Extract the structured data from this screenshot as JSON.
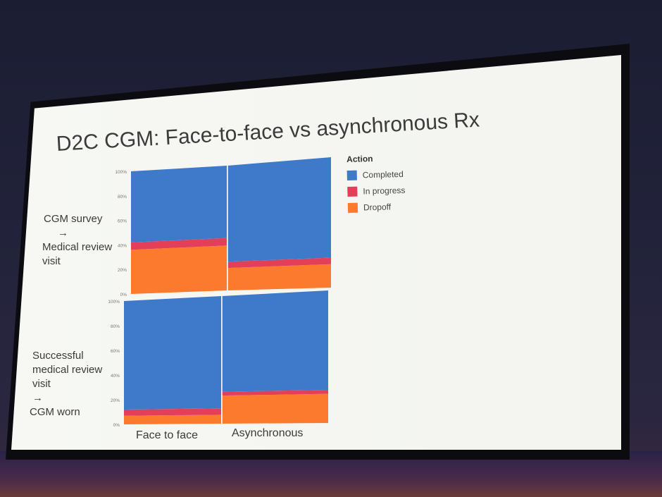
{
  "slide": {
    "title": "D2C CGM: Face-to-face vs asynchronous Rx",
    "row_labels": [
      {
        "line1": "CGM survey",
        "arrow": "→",
        "line2": "Medical review",
        "line3": "visit"
      },
      {
        "line1": "Successful",
        "line2": "medical review",
        "line3": "visit",
        "arrow": "→",
        "line4": "CGM worn"
      }
    ]
  },
  "colors": {
    "completed": "#3f79c9",
    "in_progress": "#e43f58",
    "dropoff": "#fb7a2e"
  },
  "chart_data": {
    "type": "bar",
    "stacked": true,
    "percent": true,
    "categories": [
      "Face to face",
      "Asynchronous"
    ],
    "legend": {
      "title": "Action",
      "placement": "right",
      "entries": [
        "Completed",
        "In progress",
        "Dropoff"
      ]
    },
    "y_ticks": [
      "0%",
      "20%",
      "40%",
      "60%",
      "80%",
      "100%"
    ],
    "ylim": [
      0,
      100
    ],
    "panels": [
      {
        "series": [
          {
            "name": "Dropoff",
            "values": [
              36,
              18
            ]
          },
          {
            "name": "In progress",
            "values": [
              6,
              5
            ]
          },
          {
            "name": "Completed",
            "values": [
              58,
              77
            ]
          }
        ]
      },
      {
        "series": [
          {
            "name": "Dropoff",
            "values": [
              7,
              22
            ]
          },
          {
            "name": "In progress",
            "values": [
              5,
              3
            ]
          },
          {
            "name": "Completed",
            "values": [
              88,
              75
            ]
          }
        ]
      }
    ]
  }
}
